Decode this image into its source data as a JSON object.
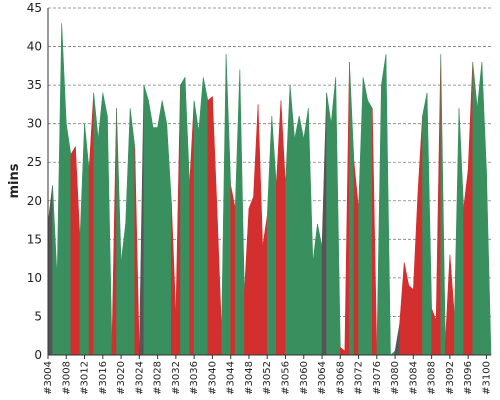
{
  "chart_data": {
    "type": "area",
    "ylabel": "mins",
    "ylim": [
      0,
      45
    ],
    "yticks": [
      "0",
      "5",
      "10",
      "15",
      "20",
      "25",
      "30",
      "35",
      "40",
      "45"
    ],
    "grid": true,
    "builds_start": 3004,
    "x_tick_labels": [
      "#3004",
      "#3008",
      "#3012",
      "#3016",
      "#3020",
      "#3024",
      "#3028",
      "#3032",
      "#3036",
      "#3040",
      "#3044",
      "#3048",
      "#3052",
      "#3056",
      "#3060",
      "#3064",
      "#3068",
      "#3072",
      "#3076",
      "#3080",
      "#3084",
      "#3088",
      "#3092",
      "#3096",
      "#3100"
    ],
    "colors": {
      "success": "#3a8f5f",
      "failure": "#d32f2f",
      "aborted": "#555555"
    },
    "values": [
      17,
      22,
      10,
      43,
      30,
      26,
      27,
      15,
      30,
      24,
      34,
      28,
      34,
      31,
      1,
      32,
      12,
      17,
      32,
      27,
      0,
      35,
      33,
      29.5,
      29.5,
      33,
      30,
      20,
      5,
      35,
      36,
      22,
      33,
      29,
      36,
      33,
      33.5,
      19,
      3,
      39,
      22,
      19,
      37,
      8,
      19,
      20.5,
      32.5,
      14,
      18,
      31,
      22,
      33,
      22,
      35,
      28,
      31,
      28,
      32,
      12,
      17,
      14,
      34,
      30,
      36,
      1,
      0.5,
      38,
      25,
      19,
      36,
      33,
      32,
      0,
      35,
      39,
      0,
      0.5,
      4,
      12,
      9,
      8.5,
      21,
      31,
      34,
      6,
      4.5,
      39,
      1.5,
      13,
      5,
      32,
      19,
      24,
      38,
      32,
      38,
      24,
      0
    ],
    "status": [
      "aborted",
      "success",
      "success",
      "success",
      "success",
      "failure",
      "failure",
      "success",
      "success",
      "failure",
      "success",
      "success",
      "success",
      "success",
      "failure",
      "success",
      "success",
      "success",
      "success",
      "failure",
      "aborted",
      "success",
      "success",
      "success",
      "success",
      "success",
      "success",
      "failure",
      "failure",
      "success",
      "success",
      "failure",
      "success",
      "success",
      "success",
      "failure",
      "failure",
      "failure",
      "success",
      "success",
      "failure",
      "success",
      "success",
      "failure",
      "failure",
      "failure",
      "failure",
      "failure",
      "success",
      "success",
      "failure",
      "failure",
      "success",
      "success",
      "success",
      "success",
      "success",
      "success",
      "success",
      "success",
      "aborted",
      "success",
      "success",
      "success",
      "failure",
      "failure",
      "success",
      "failure",
      "success",
      "success",
      "success",
      "failure",
      "success",
      "success",
      "success",
      "success",
      "aborted",
      "failure",
      "failure",
      "failure",
      "failure",
      "failure",
      "success",
      "success",
      "failure",
      "failure",
      "success",
      "failure",
      "failure",
      "success",
      "success",
      "failure",
      "failure",
      "success",
      "success",
      "success",
      "success",
      "aborted"
    ]
  }
}
